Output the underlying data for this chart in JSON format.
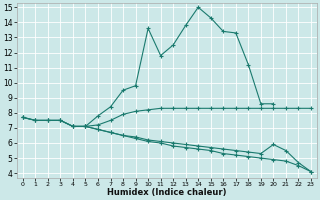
{
  "xlabel": "Humidex (Indice chaleur)",
  "bg_color": "#cce8e8",
  "line_color": "#1a7a6e",
  "grid_color": "#ffffff",
  "xlim": [
    -0.5,
    23.5
  ],
  "ylim": [
    3.7,
    15.3
  ],
  "xticks": [
    0,
    1,
    2,
    3,
    4,
    5,
    6,
    7,
    8,
    9,
    10,
    11,
    12,
    13,
    14,
    15,
    16,
    17,
    18,
    19,
    20,
    21,
    22,
    23
  ],
  "yticks": [
    4,
    5,
    6,
    7,
    8,
    9,
    10,
    11,
    12,
    13,
    14,
    15
  ],
  "line1_x": [
    0,
    1,
    2,
    3,
    4,
    5,
    6,
    7,
    8,
    9,
    10,
    11,
    12,
    13,
    14,
    15,
    16,
    17,
    18,
    19,
    20
  ],
  "line1_y": [
    7.7,
    7.5,
    7.5,
    7.5,
    7.1,
    7.1,
    7.8,
    8.4,
    9.5,
    9.8,
    13.6,
    11.8,
    12.5,
    13.8,
    15.0,
    14.3,
    13.4,
    13.3,
    11.2,
    8.6,
    8.6
  ],
  "line2_x": [
    0,
    1,
    2,
    3,
    4,
    5,
    6,
    7,
    8,
    9,
    10,
    11,
    12,
    13,
    14,
    15,
    16,
    17,
    18,
    19,
    20,
    21,
    22,
    23
  ],
  "line2_y": [
    7.7,
    7.5,
    7.5,
    7.5,
    7.1,
    7.1,
    7.2,
    7.5,
    7.9,
    8.1,
    8.2,
    8.3,
    8.3,
    8.3,
    8.3,
    8.3,
    8.3,
    8.3,
    8.3,
    8.3,
    8.3,
    8.3,
    8.3,
    8.3
  ],
  "line3_x": [
    0,
    1,
    2,
    3,
    4,
    5,
    6,
    7,
    8,
    9,
    10,
    11,
    12,
    13,
    14,
    15,
    16,
    17,
    18,
    19,
    20,
    21,
    22,
    23
  ],
  "line3_y": [
    7.7,
    7.5,
    7.5,
    7.5,
    7.1,
    7.1,
    6.9,
    6.7,
    6.5,
    6.4,
    6.2,
    6.1,
    6.0,
    5.9,
    5.8,
    5.7,
    5.6,
    5.5,
    5.4,
    5.3,
    5.9,
    5.5,
    4.7,
    4.1
  ],
  "line4_x": [
    4,
    5,
    6,
    7,
    8,
    9,
    10,
    11,
    12,
    13,
    14,
    15,
    16,
    17,
    18,
    19,
    20,
    21,
    22,
    23
  ],
  "line4_y": [
    7.1,
    7.1,
    6.9,
    6.7,
    6.5,
    6.3,
    6.1,
    6.0,
    5.8,
    5.7,
    5.6,
    5.5,
    5.3,
    5.2,
    5.1,
    5.0,
    4.9,
    4.8,
    4.5,
    4.1
  ]
}
